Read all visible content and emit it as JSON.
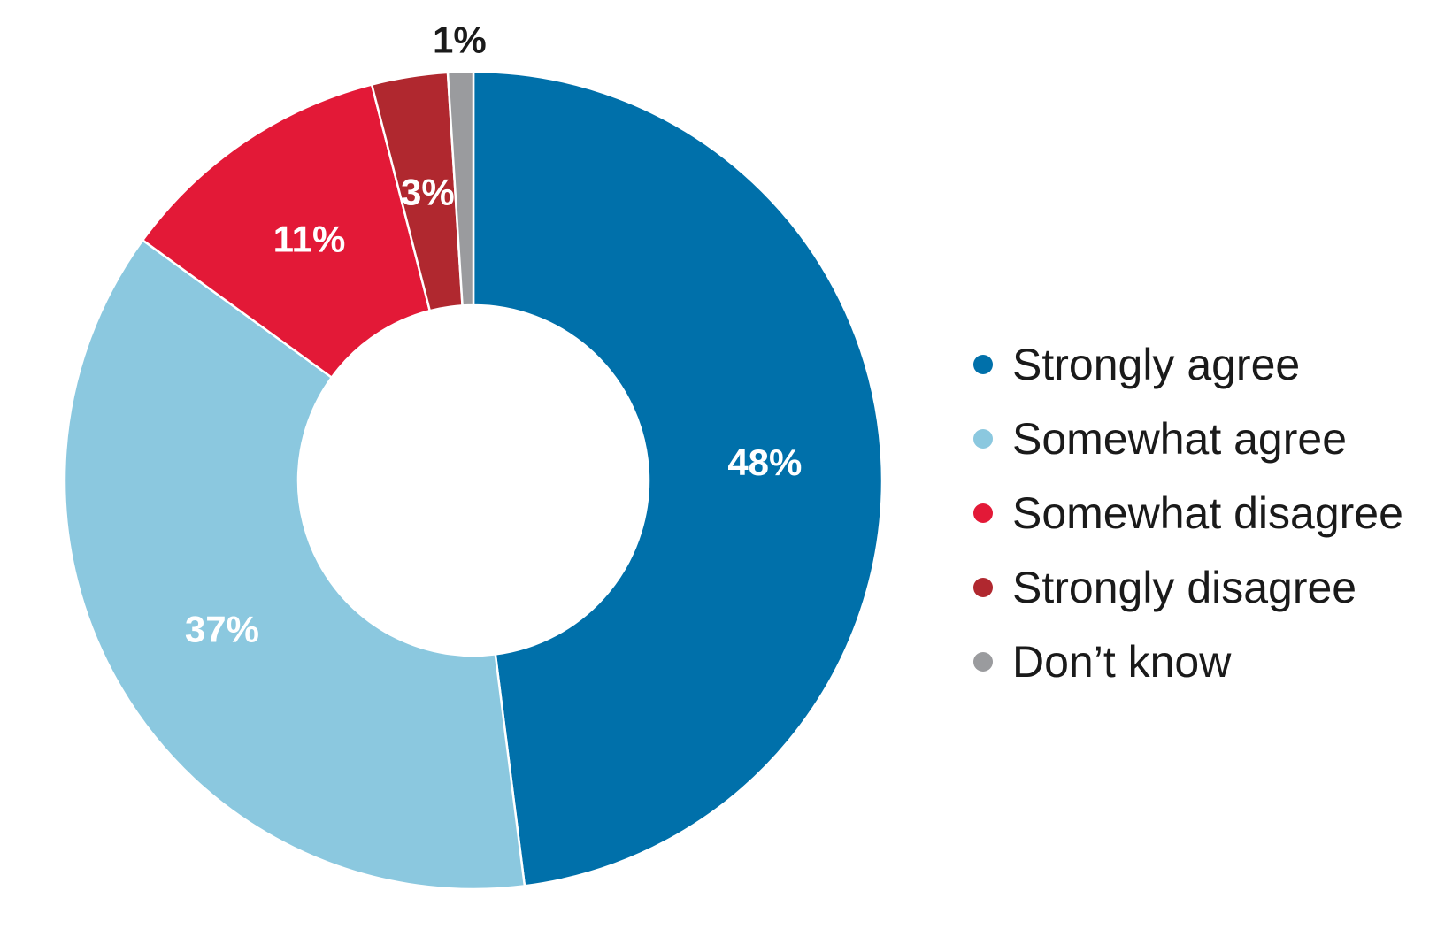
{
  "chart_data": {
    "type": "pie",
    "donut": true,
    "categories": [
      "Strongly agree",
      "Somewhat agree",
      "Somewhat disagree",
      "Strongly disagree",
      "Don’t know"
    ],
    "values": [
      48,
      37,
      11,
      3,
      1
    ],
    "labels": [
      "48%",
      "37%",
      "11%",
      "3%",
      "1%"
    ],
    "colors": [
      "#0070AA",
      "#8BC8DF",
      "#E31937",
      "#B0282F",
      "#9A9B9E"
    ],
    "label_colors": [
      "#ffffff",
      "#ffffff",
      "#ffffff",
      "#ffffff",
      "#1a1a1a"
    ],
    "legend_position": "right"
  }
}
